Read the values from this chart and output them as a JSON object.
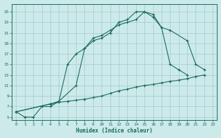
{
  "xlabel": "Humidex (Indice chaleur)",
  "ylabel": "",
  "bg_color": "#cceaea",
  "grid_color": "#aacece",
  "line_color": "#1a6b5a",
  "xlim": [
    -0.5,
    23.5
  ],
  "ylim": [
    4.5,
    26.5
  ],
  "xticks": [
    0,
    1,
    2,
    3,
    4,
    5,
    6,
    7,
    8,
    9,
    10,
    11,
    12,
    13,
    14,
    15,
    16,
    17,
    18,
    19,
    20,
    21,
    22,
    23
  ],
  "yticks": [
    5,
    7,
    9,
    11,
    13,
    15,
    17,
    19,
    21,
    23,
    25
  ],
  "line1_x": [
    0,
    1,
    2,
    3,
    4,
    5,
    6,
    7,
    8,
    9,
    10,
    11,
    12,
    13,
    14,
    15,
    16,
    17,
    18,
    19,
    20
  ],
  "line1_y": [
    6,
    5,
    5,
    7,
    7,
    8,
    15,
    17,
    18,
    19.5,
    20,
    21,
    23,
    23.5,
    25,
    25,
    24,
    22,
    15,
    14,
    13
  ],
  "line2_x": [
    0,
    4,
    5,
    7,
    8,
    9,
    10,
    11,
    12,
    13,
    14,
    15,
    16,
    17,
    18,
    20,
    21,
    22
  ],
  "line2_y": [
    6,
    7.5,
    8,
    11,
    18,
    20,
    20.5,
    21.5,
    22.5,
    23,
    23.5,
    25,
    24.5,
    22,
    21.5,
    19.5,
    15,
    14
  ],
  "line3_x": [
    0,
    4,
    5,
    6,
    7,
    8,
    9,
    10,
    11,
    12,
    13,
    14,
    15,
    16,
    17,
    18,
    19,
    20,
    21,
    22
  ],
  "line3_y": [
    6,
    7.5,
    7.8,
    8,
    8.2,
    8.4,
    8.7,
    9,
    9.5,
    10,
    10.3,
    10.7,
    11,
    11.2,
    11.5,
    11.8,
    12,
    12.3,
    12.7,
    13
  ]
}
